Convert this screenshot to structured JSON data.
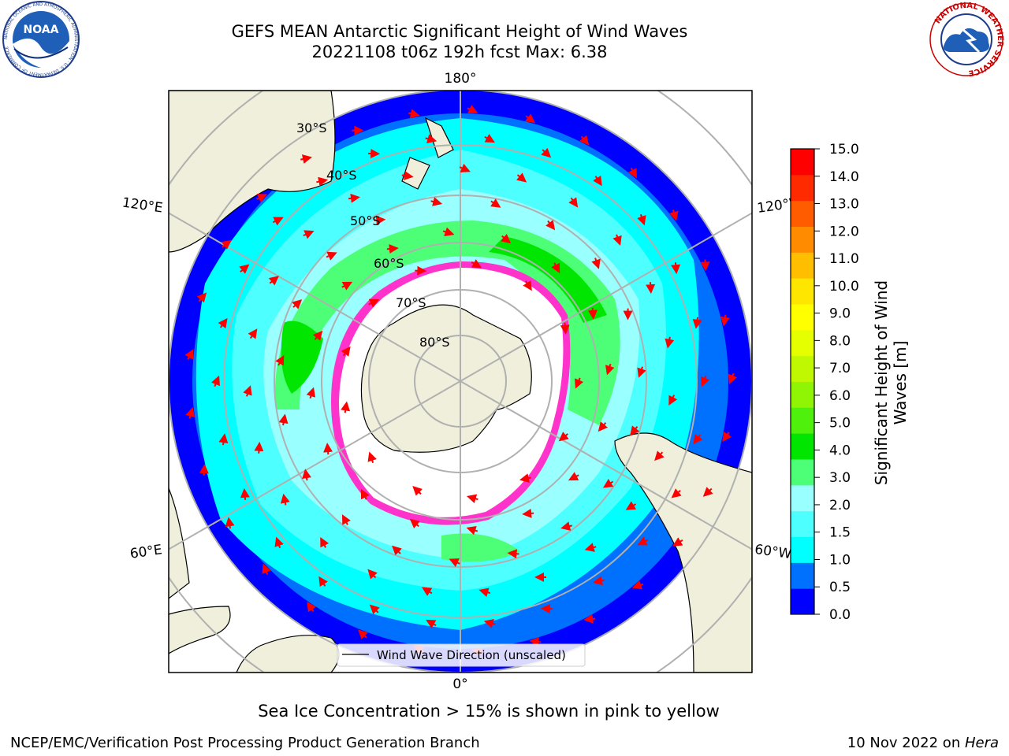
{
  "header": {
    "title_line1": "GEFS MEAN Antarctic Significant Height of Wind Waves",
    "title_line2": "20221108 t06z 192h fcst   Max: 6.38"
  },
  "logos": {
    "noaa_text": "NOAA",
    "noaa_ring": "NATIONAL OCEANIC AND ATMOSPHERIC ADMINISTRATION · U.S. DEPARTMENT OF COMMERCE",
    "nws_ring": "NATIONAL WEATHER SERVICE"
  },
  "map": {
    "lon_labels": {
      "top": "180°",
      "bottom": "0°",
      "ul": "120°E",
      "ur": "120°W",
      "ll": "60°E",
      "lr": "60°W"
    },
    "lat_labels": [
      "30°S",
      "40°S",
      "50°S",
      "60°S",
      "70°S",
      "80°S"
    ],
    "legend_label": "Wind Wave Direction (unscaled)"
  },
  "colorbar": {
    "label": "Significant Height of Wind Waves [m]",
    "ticks": [
      "15.0",
      "14.0",
      "13.0",
      "12.0",
      "11.0",
      "10.0",
      "9.0",
      "8.0",
      "7.0",
      "6.0",
      "5.0",
      "4.0",
      "3.0",
      "2.0",
      "1.5",
      "1.0",
      "0.5",
      "0.0"
    ],
    "colors": [
      "#0000ff",
      "#0070ff",
      "#00ffff",
      "#4dffff",
      "#99ffff",
      "#4dff77",
      "#00e600",
      "#4ff00b",
      "#8ff505",
      "#bff800",
      "#e6ff00",
      "#ffff00",
      "#ffe600",
      "#ffbf00",
      "#ff8c00",
      "#ff5c00",
      "#ff2a00",
      "#ff0000"
    ]
  },
  "notes": {
    "sea_ice": "Sea Ice Concentration > 15% is shown in pink to yellow",
    "credit": "NCEP/EMC/Verification Post Processing Product Generation Branch",
    "date": "10 Nov 2022 on ",
    "machine": "Hera"
  }
}
